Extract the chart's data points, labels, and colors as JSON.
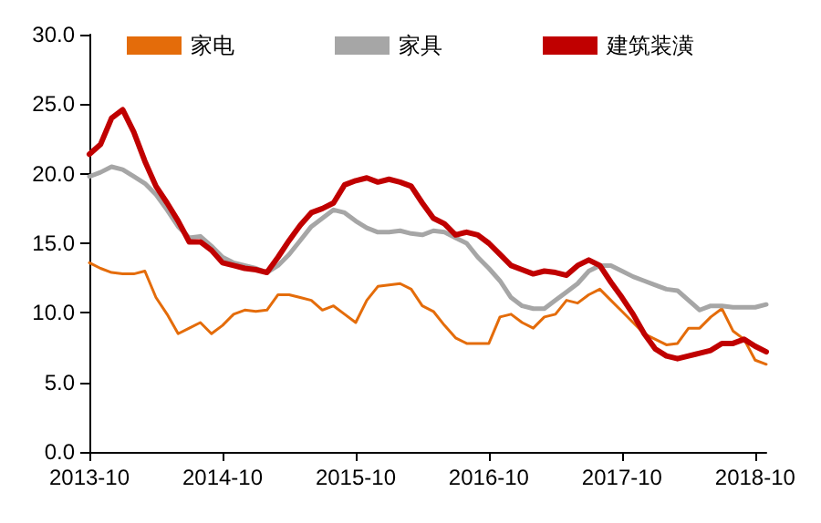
{
  "chart_data": {
    "type": "line",
    "categories": [
      "2013-10",
      null,
      null,
      null,
      null,
      null,
      null,
      null,
      null,
      null,
      null,
      null,
      "2014-10",
      null,
      null,
      null,
      null,
      null,
      null,
      null,
      null,
      null,
      null,
      null,
      "2015-10",
      null,
      null,
      null,
      null,
      null,
      null,
      null,
      null,
      null,
      null,
      null,
      "2016-10",
      null,
      null,
      null,
      null,
      null,
      null,
      null,
      null,
      null,
      null,
      null,
      "2017-10",
      null,
      null,
      null,
      null,
      null,
      null,
      null,
      null,
      null,
      null,
      null,
      "2018-10",
      null
    ],
    "series": [
      {
        "name": "家电",
        "color": "#e46c0a",
        "values": [
          13.6,
          13.2,
          12.9,
          12.8,
          12.8,
          13.0,
          11.1,
          9.9,
          8.5,
          8.9,
          9.3,
          8.5,
          9.1,
          9.9,
          10.2,
          10.1,
          10.2,
          11.3,
          11.3,
          11.1,
          10.9,
          10.2,
          10.5,
          9.9,
          9.3,
          10.9,
          11.9,
          12.0,
          12.1,
          11.7,
          10.5,
          10.1,
          9.1,
          8.2,
          7.8,
          7.8,
          7.8,
          9.7,
          9.9,
          9.3,
          8.9,
          9.7,
          9.9,
          10.9,
          10.7,
          11.3,
          11.7,
          10.9,
          10.1,
          9.3,
          8.5,
          8.1,
          7.7,
          7.8,
          8.9,
          8.9,
          9.7,
          10.3,
          8.7,
          8.1,
          6.6,
          6.3
        ]
      },
      {
        "name": "家具",
        "color": "#a6a6a6",
        "values": [
          19.8,
          20.1,
          20.5,
          20.3,
          19.8,
          19.3,
          18.5,
          17.4,
          16.2,
          15.4,
          15.5,
          14.8,
          14.0,
          13.6,
          13.4,
          13.2,
          12.9,
          13.4,
          14.2,
          15.2,
          16.2,
          16.8,
          17.4,
          17.2,
          16.6,
          16.1,
          15.8,
          15.8,
          15.9,
          15.7,
          15.6,
          15.9,
          15.8,
          15.4,
          15.0,
          14.0,
          13.2,
          12.3,
          11.1,
          10.5,
          10.3,
          10.3,
          10.9,
          11.5,
          12.1,
          13.0,
          13.4,
          13.4,
          13.0,
          12.6,
          12.3,
          12.0,
          11.7,
          11.6,
          10.9,
          10.2,
          10.5,
          10.5,
          10.4,
          10.4,
          10.4,
          10.6
        ]
      },
      {
        "name": "建筑装潢",
        "color": "#c00000",
        "values": [
          21.4,
          22.1,
          24.0,
          24.6,
          23.0,
          20.9,
          19.1,
          17.9,
          16.6,
          15.1,
          15.1,
          14.5,
          13.6,
          13.4,
          13.2,
          13.1,
          12.9,
          14.0,
          15.2,
          16.3,
          17.2,
          17.5,
          17.9,
          19.2,
          19.5,
          19.7,
          19.4,
          19.6,
          19.4,
          19.1,
          17.9,
          16.8,
          16.4,
          15.6,
          15.8,
          15.6,
          15.0,
          14.2,
          13.4,
          13.1,
          12.8,
          13.0,
          12.9,
          12.7,
          13.4,
          13.8,
          13.4,
          12.2,
          11.1,
          9.9,
          8.5,
          7.4,
          6.9,
          6.7,
          6.9,
          7.1,
          7.3,
          7.8,
          7.8,
          8.1,
          7.6,
          7.2
        ]
      }
    ],
    "ylim": [
      0,
      30
    ],
    "yticks": [
      {
        "value": 0,
        "label": "0.0"
      },
      {
        "value": 5,
        "label": "5.0"
      },
      {
        "value": 10,
        "label": "10.0"
      },
      {
        "value": 15,
        "label": "15.0"
      },
      {
        "value": 20,
        "label": "20.0"
      },
      {
        "value": 25,
        "label": "25.0"
      },
      {
        "value": 30,
        "label": "30.0"
      }
    ],
    "grid": false,
    "legend": "top",
    "marker": "none",
    "line_style": "solid"
  }
}
